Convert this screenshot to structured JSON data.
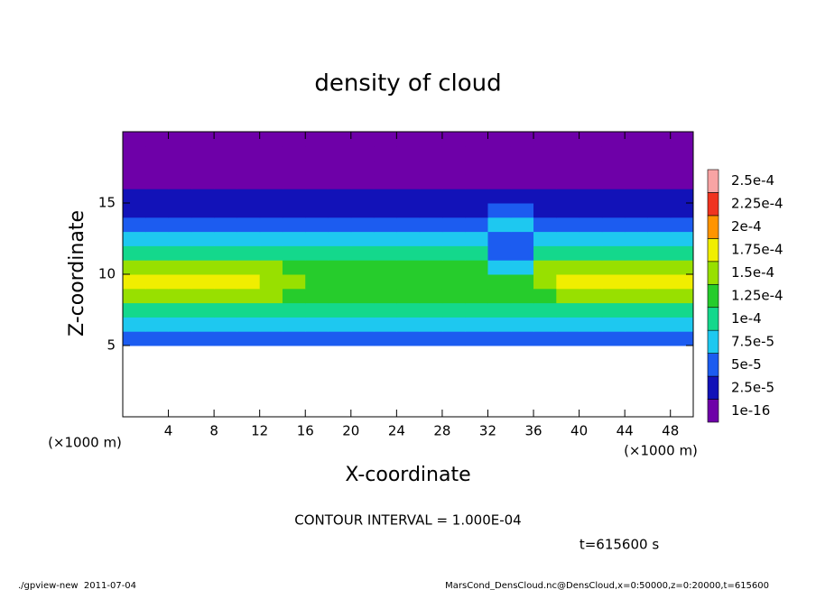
{
  "chart_data": {
    "type": "heatmap",
    "title": "density of cloud",
    "x_label": "X-coordinate",
    "y_label": "Z-coordinate",
    "x_unit": "(×1000 m)",
    "y_unit": "(×1000 m)",
    "contour_text": "CONTOUR INTERVAL = 1.000E-04",
    "time_text": "t=615600 s",
    "footer_left": "./gpview-new  2011-07-04",
    "footer_right": "MarsCond_DensCloud.nc@DensCloud,x=0:50000,z=0:20000,t=615600",
    "xlim": [
      0,
      50
    ],
    "ylim": [
      0,
      20
    ],
    "xticks": [
      4,
      8,
      12,
      16,
      20,
      24,
      28,
      32,
      36,
      40,
      44,
      48
    ],
    "yticks": [
      5,
      10,
      15
    ],
    "x": [
      1,
      3,
      5,
      7,
      9,
      11,
      13,
      15,
      17,
      19,
      21,
      23,
      25,
      27,
      29,
      31,
      33,
      35,
      37,
      39,
      41,
      43,
      45,
      47,
      49
    ],
    "y": [
      0.5,
      1.5,
      2.5,
      3.5,
      4.5,
      5.5,
      6.5,
      7.5,
      8.5,
      9.5,
      10.5,
      11.5,
      12.5,
      13.5,
      14.5,
      15.5,
      16.5,
      17.5,
      18.5,
      19.5
    ],
    "z": [
      [
        null,
        null,
        null,
        null,
        null,
        null,
        null,
        null,
        null,
        null,
        null,
        null,
        null,
        null,
        null,
        null,
        null,
        null,
        null,
        null,
        null,
        null,
        null,
        null,
        null
      ],
      [
        null,
        null,
        null,
        null,
        null,
        null,
        null,
        null,
        null,
        null,
        null,
        null,
        null,
        null,
        null,
        null,
        null,
        null,
        null,
        null,
        null,
        null,
        null,
        null,
        null
      ],
      [
        null,
        null,
        null,
        null,
        null,
        null,
        null,
        null,
        null,
        null,
        null,
        null,
        null,
        null,
        null,
        null,
        null,
        null,
        null,
        null,
        null,
        null,
        null,
        null,
        null
      ],
      [
        null,
        null,
        null,
        null,
        null,
        null,
        null,
        null,
        null,
        null,
        null,
        null,
        null,
        null,
        null,
        null,
        null,
        null,
        null,
        null,
        null,
        null,
        null,
        null,
        null
      ],
      [
        null,
        null,
        null,
        null,
        null,
        null,
        null,
        null,
        null,
        null,
        null,
        null,
        null,
        null,
        null,
        null,
        null,
        null,
        null,
        null,
        null,
        null,
        null,
        null,
        null
      ],
      [
        5e-05,
        5e-05,
        5e-05,
        5e-05,
        5e-05,
        5e-05,
        5e-05,
        5e-05,
        5e-05,
        5e-05,
        5e-05,
        5e-05,
        5e-05,
        5e-05,
        5e-05,
        5e-05,
        5e-05,
        5e-05,
        5e-05,
        5e-05,
        5e-05,
        5e-05,
        5e-05,
        5e-05,
        5e-05
      ],
      [
        9e-05,
        9e-05,
        9e-05,
        9e-05,
        9e-05,
        9e-05,
        9e-05,
        9e-05,
        9e-05,
        9e-05,
        9e-05,
        9e-05,
        9e-05,
        9e-05,
        9e-05,
        8e-05,
        9e-05,
        9e-05,
        9e-05,
        9e-05,
        9e-05,
        9e-05,
        9e-05,
        9e-05,
        9e-05
      ],
      [
        0.000115,
        0.000115,
        0.000115,
        0.000115,
        0.000115,
        0.000115,
        0.000115,
        0.000115,
        0.000115,
        0.000115,
        0.000115,
        0.000115,
        0.000115,
        0.000115,
        0.000115,
        0.000115,
        0.000115,
        0.000115,
        0.000115,
        0.000115,
        0.000115,
        0.000115,
        0.000115,
        0.000115,
        0.000115
      ],
      [
        0.00015,
        0.00015,
        0.00015,
        0.00015,
        0.00015,
        0.00015,
        0.00015,
        0.000135,
        0.000135,
        0.000135,
        0.000135,
        0.000135,
        0.000135,
        0.000135,
        0.000135,
        0.00014,
        0.00014,
        0.00014,
        0.00014,
        0.00015,
        0.00015,
        0.00015,
        0.00015,
        0.00015,
        0.00015
      ],
      [
        0.00018,
        0.00018,
        0.00018,
        0.00018,
        0.00018,
        0.00018,
        0.00016,
        0.00016,
        0.000145,
        0.000145,
        0.000145,
        0.000145,
        0.000145,
        0.000145,
        0.000145,
        0.00013,
        0.00013,
        0.00013,
        0.00016,
        0.00018,
        0.00018,
        0.00018,
        0.00018,
        0.00018,
        0.00018
      ],
      [
        0.00016,
        0.00016,
        0.00016,
        0.00016,
        0.00016,
        0.00016,
        0.00016,
        0.00013,
        0.00013,
        0.00013,
        0.00013,
        0.00013,
        0.00013,
        0.00013,
        0.00013,
        0.00013,
        9e-05,
        9e-05,
        0.00016,
        0.00016,
        0.00016,
        0.00016,
        0.00016,
        0.00016,
        0.00016
      ],
      [
        0.00012,
        0.00012,
        0.00012,
        0.00012,
        0.00012,
        0.00012,
        0.00012,
        0.00011,
        0.00011,
        0.00011,
        0.00011,
        0.00011,
        0.00011,
        0.00011,
        0.00011,
        0.0001,
        7e-05,
        7e-05,
        0.00012,
        0.00012,
        0.00012,
        0.00012,
        0.00012,
        0.00012,
        0.00012
      ],
      [
        9e-05,
        9e-05,
        9e-05,
        9e-05,
        9e-05,
        9e-05,
        9e-05,
        9e-05,
        9e-05,
        9e-05,
        9e-05,
        9e-05,
        9e-05,
        9e-05,
        9e-05,
        9e-05,
        7e-05,
        7e-05,
        9e-05,
        9e-05,
        9e-05,
        9e-05,
        9e-05,
        9e-05,
        9e-05
      ],
      [
        6e-05,
        6e-05,
        6e-05,
        6e-05,
        6e-05,
        6e-05,
        6e-05,
        6e-05,
        6e-05,
        6e-05,
        6e-05,
        6e-05,
        6e-05,
        6e-05,
        6e-05,
        6e-05,
        8e-05,
        8e-05,
        6e-05,
        6e-05,
        6e-05,
        6e-05,
        6e-05,
        6e-05,
        6e-05
      ],
      [
        4e-05,
        4e-05,
        4e-05,
        4e-05,
        4e-05,
        4e-05,
        4e-05,
        4e-05,
        4e-05,
        4e-05,
        4e-05,
        4e-05,
        4e-05,
        4e-05,
        4e-05,
        4e-05,
        6e-05,
        6e-05,
        4e-05,
        4e-05,
        4e-05,
        4e-05,
        4e-05,
        4e-05,
        4e-05
      ],
      [
        3e-05,
        3e-05,
        3e-05,
        3e-05,
        3e-05,
        3e-05,
        3e-05,
        3e-05,
        3e-05,
        3e-05,
        3e-05,
        3e-05,
        3e-05,
        3e-05,
        3e-05,
        4e-05,
        4e-05,
        4e-05,
        4e-05,
        3e-05,
        3e-05,
        3e-05,
        3e-05,
        3e-05,
        3e-05
      ],
      [
        2e-05,
        2e-05,
        2e-05,
        2e-05,
        2e-05,
        2e-05,
        2e-05,
        2e-05,
        2e-05,
        2e-05,
        2e-05,
        2e-05,
        2e-05,
        2e-05,
        2e-05,
        2e-05,
        2e-05,
        2e-05,
        2e-05,
        2e-05,
        2e-05,
        1e-05,
        1e-05,
        1e-05,
        1e-05
      ],
      [
        8e-06,
        8e-06,
        8e-06,
        8e-06,
        8e-06,
        8e-06,
        8e-06,
        8e-06,
        8e-06,
        8e-06,
        8e-06,
        8e-06,
        8e-06,
        8e-06,
        8e-06,
        8e-06,
        8e-06,
        8e-06,
        8e-06,
        8e-06,
        8e-06,
        8e-06,
        8e-06,
        8e-06,
        8e-06
      ],
      [
        3e-06,
        3e-06,
        3e-06,
        3e-06,
        3e-06,
        3e-06,
        3e-06,
        3e-06,
        3e-06,
        3e-06,
        3e-06,
        3e-06,
        3e-06,
        3e-06,
        3e-06,
        3e-06,
        3e-06,
        3e-06,
        3e-06,
        3e-06,
        3e-06,
        3e-06,
        3e-06,
        3e-06,
        3e-06
      ],
      [
        1e-16,
        1e-16,
        1e-16,
        1e-16,
        1e-16,
        1e-16,
        1e-16,
        1e-16,
        1e-16,
        1e-16,
        1e-16,
        1e-16,
        1e-16,
        1e-16,
        1e-16,
        1e-16,
        1e-16,
        1e-16,
        1e-16,
        1e-16,
        1e-16,
        1e-16,
        1e-16,
        1e-16,
        1e-16
      ]
    ],
    "colorbar_ticks": [
      1e-16,
      {
        "value": 2.5e-05,
        "label": "2.5e-5"
      },
      {
        "value": 5e-05,
        "label": "5e-5"
      },
      {
        "value": 7.5e-05,
        "label": "7.5e-5"
      },
      {
        "value": 0.0001,
        "label": "1e-4"
      },
      {
        "value": 0.000125,
        "label": "1.25e-4"
      },
      {
        "value": 0.00015,
        "label": "1.5e-4"
      },
      {
        "value": 0.000175,
        "label": "1.75e-4"
      },
      {
        "value": 0.0002,
        "label": "2e-4"
      },
      {
        "value": 0.000225,
        "label": "2.25e-4"
      },
      {
        "value": 0.00025,
        "label": "2.5e-4"
      }
    ],
    "colors": [
      "#6e00a8",
      "#1212b8",
      "#1c5cf0",
      "#1ec8f0",
      "#14d88c",
      "#26cc2c",
      "#98e000",
      "#f0ee00",
      "#ff9400",
      "#f03420",
      "#f8a4a4"
    ]
  }
}
